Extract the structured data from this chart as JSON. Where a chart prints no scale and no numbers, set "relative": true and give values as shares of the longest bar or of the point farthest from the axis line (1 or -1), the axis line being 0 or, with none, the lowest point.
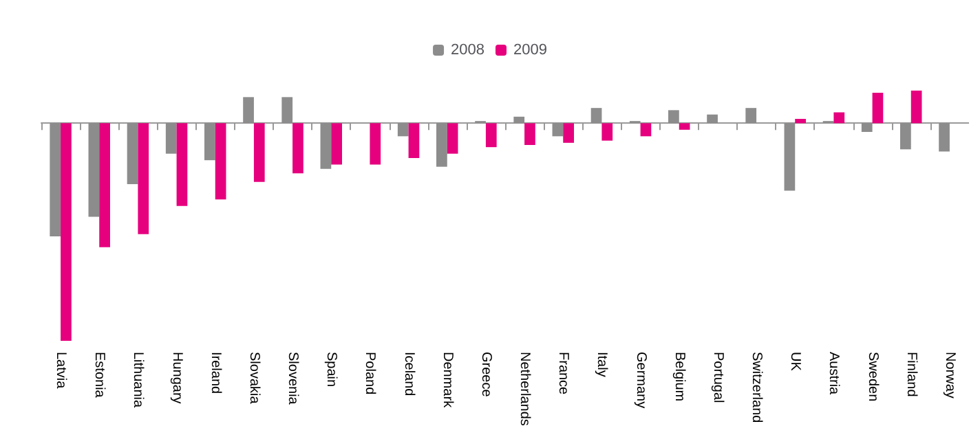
{
  "chart_data": {
    "type": "bar",
    "relative": true,
    "legend": "top",
    "categories": [
      "Latvia",
      "Estonia",
      "Lithuania",
      "Hungary",
      "Ireland",
      "Slovakia",
      "Slovenia",
      "Spain",
      "Poland",
      "Iceland",
      "Denmark",
      "Greece",
      "Netherlands",
      "France",
      "Italy",
      "Germany",
      "Belgium",
      "Portugal",
      "Switzerland",
      "UK",
      "Austria",
      "Sweden",
      "Finland",
      "Norway"
    ],
    "series": [
      {
        "name": "2008",
        "color": "#8c8c8c",
        "values": [
          -0.52,
          -0.43,
          -0.28,
          -0.14,
          -0.17,
          0.12,
          0.12,
          -0.21,
          0,
          -0.06,
          -0.2,
          0.01,
          0.03,
          -0.06,
          0.07,
          0.01,
          0.06,
          0.04,
          0.07,
          -0.31,
          0.01,
          -0.04,
          -0.12,
          -0.13
        ]
      },
      {
        "name": "2009",
        "color": "#e6007e",
        "values": [
          -1,
          -0.57,
          -0.51,
          -0.38,
          -0.35,
          -0.27,
          -0.23,
          -0.19,
          -0.19,
          -0.16,
          -0.14,
          -0.11,
          -0.1,
          -0.09,
          -0.08,
          -0.06,
          -0.03,
          0,
          0,
          0.02,
          0.05,
          0.14,
          0.15,
          null
        ]
      }
    ]
  }
}
